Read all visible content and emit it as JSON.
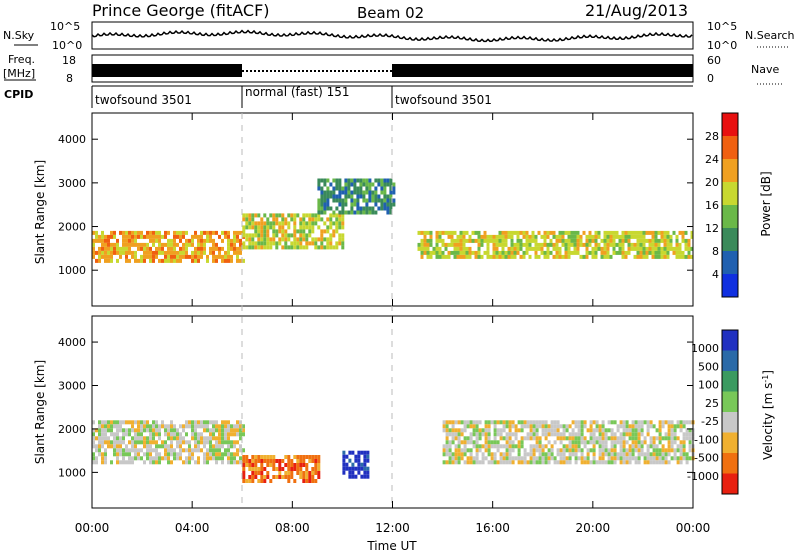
{
  "header": {
    "station": "Prince George (fitACF)",
    "beam": "Beam 02",
    "date": "21/Aug/2013"
  },
  "noise_panel": {
    "left_label": "N.Sky",
    "right_label": "N.Search",
    "left_ticks": [
      "10^5",
      "10^0"
    ],
    "right_ticks": [
      "10^5",
      "10^0"
    ]
  },
  "freq_panel": {
    "left_label_1": "Freq.",
    "left_label_2": "[MHz]",
    "left_ticks": [
      "18",
      "8"
    ],
    "right_label": "Nave",
    "right_ticks": [
      "60",
      "0"
    ]
  },
  "cpid": {
    "label": "CPID",
    "segments": [
      {
        "name": "twofsound 3501",
        "start": 0,
        "end": 6
      },
      {
        "name": "normal (fast) 151",
        "start": 6,
        "end": 12
      },
      {
        "name": "twofsound 3501",
        "start": 12,
        "end": 24
      }
    ]
  },
  "power_panel": {
    "ylabel": "Slant Range [km]",
    "yticks": [
      "4000",
      "3000",
      "2000",
      "1000"
    ],
    "colorbar_label": "Power [dB]",
    "colorbar_ticks": [
      "28",
      "24",
      "20",
      "16",
      "12",
      "8",
      "4"
    ],
    "colors": [
      "#1030e0",
      "#2060b0",
      "#3a8a5a",
      "#6ab848",
      "#c8d830",
      "#f0a020",
      "#f06010",
      "#e81010"
    ]
  },
  "velocity_panel": {
    "ylabel": "Slant Range [km]",
    "yticks": [
      "4000",
      "3000",
      "2000",
      "1000"
    ],
    "colorbar_label": "Velocity [m s",
    "colorbar_sup": "-1",
    "colorbar_label_end": "]",
    "colorbar_ticks": [
      "1000",
      "500",
      "100",
      "25",
      "-25",
      "-100",
      "-500",
      "-1000"
    ],
    "colors": [
      "#2030c0",
      "#2a6aa8",
      "#3a9a60",
      "#78c858",
      "#c8c8c8",
      "#f0b030",
      "#f07010",
      "#e82010"
    ]
  },
  "xaxis": {
    "label": "Time UT",
    "ticks": [
      "00:00",
      "04:00",
      "08:00",
      "12:00",
      "16:00",
      "20:00",
      "00:00"
    ]
  },
  "chart_data": {
    "type": "heatmap",
    "title": "Prince George (fitACF) Beam 02 21/Aug/2013",
    "xlabel": "Time UT",
    "ylabel": "Slant Range [km]",
    "xlim": [
      "00:00",
      "24:00"
    ],
    "ylim": [
      180,
      4600
    ],
    "panels": [
      {
        "quantity": "Power [dB]",
        "range": [
          0,
          30
        ],
        "bands": [
          {
            "time_start": 0,
            "time_end": 6,
            "range_start": 1200,
            "range_end": 1900,
            "level": 22
          },
          {
            "time_start": 6,
            "time_end": 10,
            "range_start": 1500,
            "range_end": 2300,
            "level": 16
          },
          {
            "time_start": 9,
            "time_end": 12,
            "range_start": 2300,
            "range_end": 3100,
            "level": 10
          },
          {
            "time_start": 13,
            "time_end": 24,
            "range_start": 1300,
            "range_end": 1900,
            "level": 18
          }
        ]
      },
      {
        "quantity": "Velocity [m s-1]",
        "range": [
          -1000,
          1000
        ],
        "bands": [
          {
            "time_start": 0,
            "time_end": 6,
            "range_start": 1200,
            "range_end": 2200,
            "level": 0
          },
          {
            "time_start": 6,
            "time_end": 9,
            "range_start": 800,
            "range_end": 1400,
            "level": -400
          },
          {
            "time_start": 10,
            "time_end": 11,
            "range_start": 900,
            "range_end": 1500,
            "level": 600
          },
          {
            "time_start": 14,
            "time_end": 24,
            "range_start": 1200,
            "range_end": 2200,
            "level": 0
          }
        ]
      }
    ]
  }
}
